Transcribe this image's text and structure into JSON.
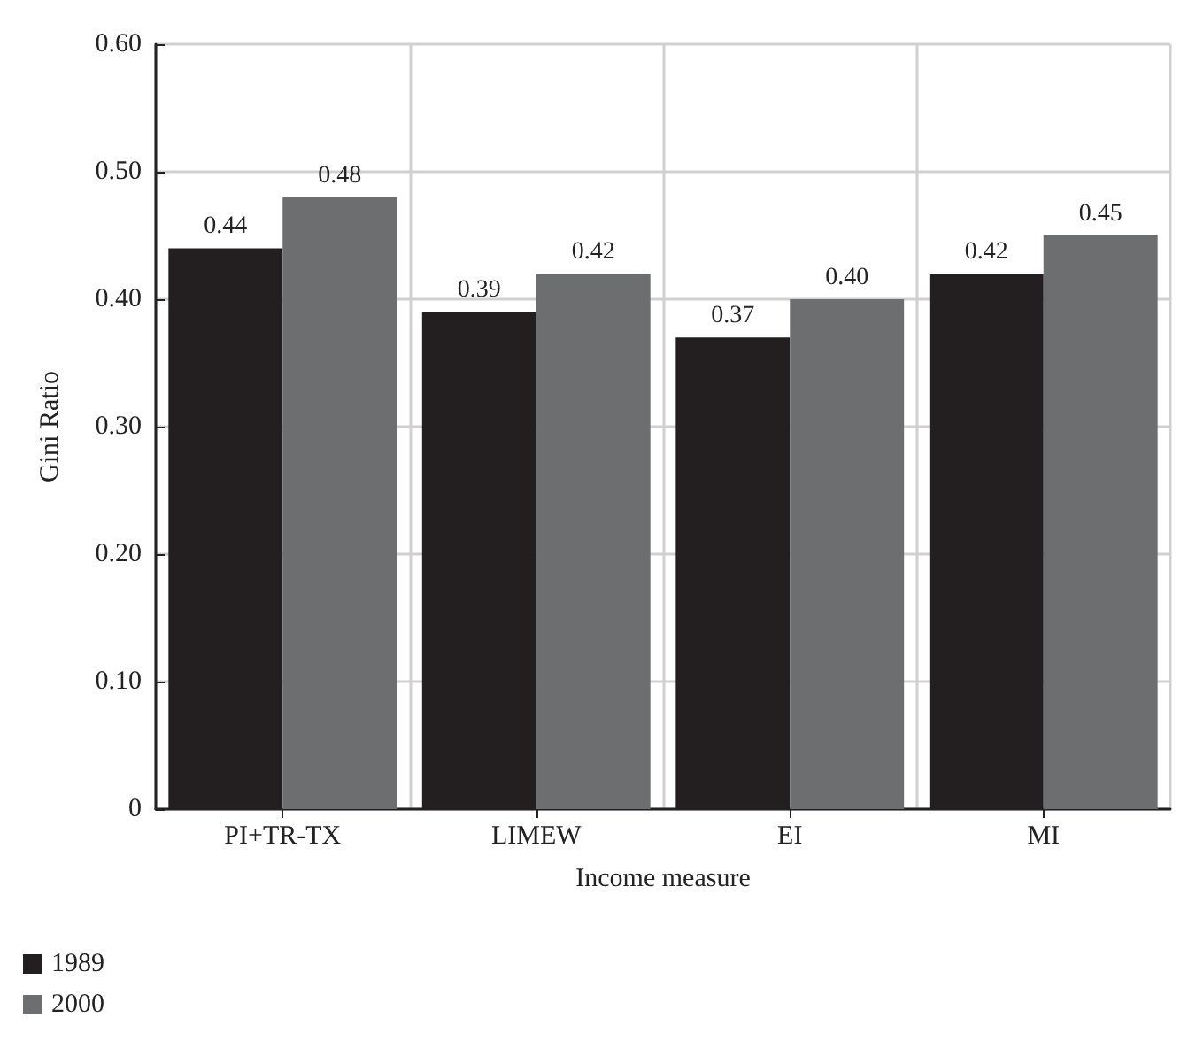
{
  "chart_data": {
    "type": "bar",
    "xlabel": "Income measure",
    "ylabel": "Gini Ratio",
    "categories": [
      "PI+TR-TX",
      "LIMEW",
      "EI",
      "MI"
    ],
    "series": [
      {
        "name": "1989",
        "color": "#231f20",
        "values": [
          0.44,
          0.39,
          0.37,
          0.42
        ],
        "value_labels": [
          "0.44",
          "0.39",
          "0.37",
          "0.42"
        ]
      },
      {
        "name": "2000",
        "color": "#6d6e70",
        "values": [
          0.48,
          0.42,
          0.4,
          0.45
        ],
        "value_labels": [
          "0.48",
          "0.42",
          "0.40",
          "0.45"
        ]
      }
    ],
    "ylim": [
      0,
      0.6
    ],
    "yticks": [
      0,
      {
        "value": 0.1,
        "label": "0.10"
      },
      {
        "value": 0.2,
        "label": "0.20"
      },
      {
        "value": 0.3,
        "label": "0.30"
      },
      {
        "value": 0.4,
        "label": "0.40"
      },
      {
        "value": 0.5,
        "label": "0.50"
      },
      {
        "value": 0.6,
        "label": "0.60"
      }
    ],
    "grid": true,
    "legend": "bottom left"
  }
}
